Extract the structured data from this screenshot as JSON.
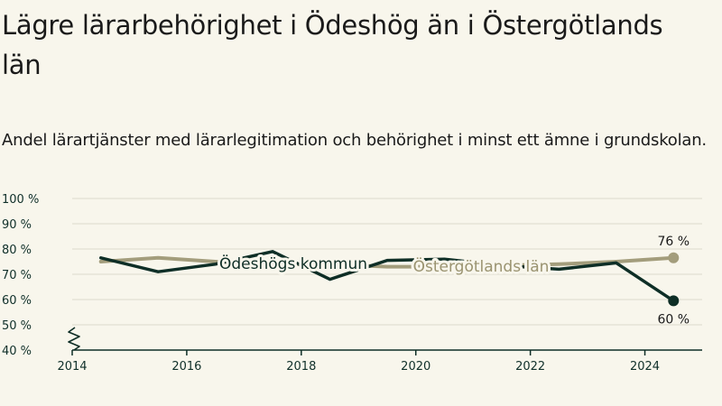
{
  "title": "Lägre lärarbehörighet i Ödeshög än i Östergötlands län",
  "subtitle": "Andel lärartjänster med lärarlegitimation och behörighet i minst ett ämne i grundskolan.",
  "colors": {
    "kommun": "#0e2e26",
    "lan": "#a39d7c",
    "grid": "#dcd9cc",
    "background": "#f8f6ec"
  },
  "chart_data": {
    "type": "line",
    "title": "Lägre lärarbehörighet i Ödeshög än i Östergötlands län",
    "subtitle": "Andel lärartjänster med lärarlegitimation och behörighet i minst ett ämne i grundskolan.",
    "x": [
      2014.5,
      2015.5,
      2016.5,
      2017.5,
      2018.5,
      2019.5,
      2020.5,
      2021.5,
      2022.5,
      2023.5,
      2024.5
    ],
    "xticks": [
      2014,
      2016,
      2018,
      2020,
      2022,
      2024
    ],
    "xlim": [
      2014,
      2025
    ],
    "yticks": [
      40,
      50,
      60,
      70,
      80,
      90,
      100
    ],
    "yticklabels": [
      "40 %",
      "50 %",
      "60 %",
      "70 %",
      "80 %",
      "90 %",
      "100 %"
    ],
    "ylim": [
      40,
      100
    ],
    "axis_break": true,
    "grid": true,
    "series": [
      {
        "name": "Ödeshögs kommun",
        "values": [
          76.5,
          71,
          74,
          79,
          68,
          75.5,
          76,
          73.5,
          72,
          74.5,
          59.5
        ],
        "end_label": "60 %"
      },
      {
        "name": "Östergötlands län",
        "values": [
          75,
          76.5,
          75,
          74,
          74,
          73,
          73,
          73.5,
          74,
          75,
          76.5
        ],
        "end_label": "76 %"
      }
    ]
  }
}
